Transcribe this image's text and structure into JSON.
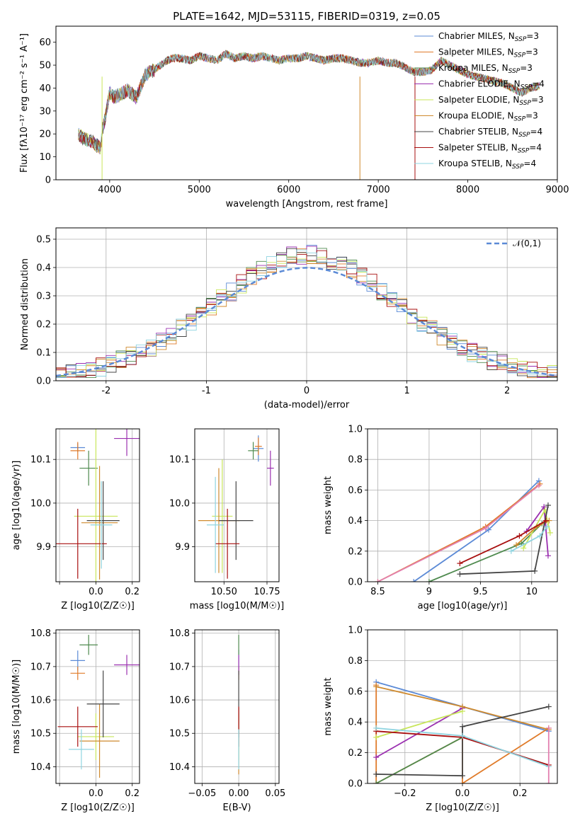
{
  "colors": [
    "#5b8ad6",
    "#e07b2a",
    "#4e8a4e",
    "#9b30b0",
    "#c8e65a",
    "#cf8a2e",
    "#444444",
    "#a80f0f",
    "#8fd4e0",
    "#e380b0"
  ],
  "panels": [
    {
      "id": "spectrum",
      "title": "PLATE=1642, MJD=53115, FIBERID=0319, z=0.05",
      "xlabel": "wavelength [Angstrom, rest frame]",
      "ylabel": "Flux [f$\\lambda$10$^{-17}$ erg cm$^{-2}$ s$^{-1}$ A$^{-1}$]",
      "ylabel_plain": "Flux [fλ10⁻¹⁷ erg cm⁻² s⁻¹ A⁻¹]",
      "xlim": [
        3400,
        9000
      ],
      "ylim": [
        0,
        67
      ],
      "xticks": [
        4000,
        5000,
        6000,
        7000,
        8000,
        9000
      ],
      "yticks": [
        0,
        10,
        20,
        30,
        40,
        50,
        60
      ],
      "legend": [
        "Chabrier MILES, N_SSP=3",
        "Salpeter MILES, N_SSP=3",
        "Kroupa MILES, N_SSP=3",
        "Chabrier ELODIE, N_SSP=4",
        "Salpeter ELODIE, N_SSP=3",
        "Kroupa ELODIE, N_SSP=3",
        "Chabrier STELIB, N_SSP=4",
        "Salpeter STELIB, N_SSP=4",
        "Kroupa STELIB, N_SSP=4"
      ],
      "legend_placement": "top-right",
      "grid": false,
      "continuum": [
        [
          3650,
          20
        ],
        [
          3700,
          18
        ],
        [
          3800,
          17
        ],
        [
          3850,
          15
        ],
        [
          3900,
          14
        ],
        [
          3920,
          22
        ],
        [
          3950,
          27
        ],
        [
          4000,
          38
        ],
        [
          4050,
          36
        ],
        [
          4100,
          37
        ],
        [
          4200,
          39
        ],
        [
          4300,
          36
        ],
        [
          4400,
          46
        ],
        [
          4500,
          48
        ],
        [
          4600,
          51
        ],
        [
          4700,
          53
        ],
        [
          4800,
          53
        ],
        [
          4900,
          52
        ],
        [
          5000,
          54
        ],
        [
          5100,
          53
        ],
        [
          5200,
          52
        ],
        [
          5300,
          55
        ],
        [
          5400,
          53
        ],
        [
          5500,
          54
        ],
        [
          5600,
          53
        ],
        [
          5700,
          54
        ],
        [
          5800,
          53
        ],
        [
          5900,
          52
        ],
        [
          6000,
          53
        ],
        [
          6100,
          53
        ],
        [
          6200,
          54
        ],
        [
          6300,
          53
        ],
        [
          6400,
          52
        ],
        [
          6500,
          53
        ],
        [
          6600,
          53
        ],
        [
          6700,
          52
        ],
        [
          6800,
          51
        ],
        [
          6900,
          51
        ],
        [
          7000,
          52
        ],
        [
          7100,
          51
        ],
        [
          7200,
          51
        ],
        [
          7300,
          49
        ],
        [
          7400,
          47
        ],
        [
          7500,
          47
        ],
        [
          7600,
          48
        ],
        [
          7700,
          52
        ],
        [
          7800,
          50
        ],
        [
          7900,
          48
        ],
        [
          8000,
          46
        ],
        [
          8100,
          45
        ],
        [
          8200,
          44
        ],
        [
          8300,
          43
        ],
        [
          8400,
          42
        ],
        [
          8500,
          40
        ],
        [
          8600,
          38
        ],
        [
          8700,
          40
        ],
        [
          8800,
          41
        ]
      ],
      "dropouts": [
        [
          3915,
          0
        ],
        [
          6795,
          0
        ],
        [
          7410,
          0
        ]
      ]
    },
    {
      "id": "residuals",
      "xlabel": "(data-model)/error",
      "ylabel": "Normed distribution",
      "xlim": [
        -2.5,
        2.5
      ],
      "ylim": [
        0,
        0.54
      ],
      "xticks": [
        -2,
        -1,
        0,
        1,
        2
      ],
      "yticks": [
        0.0,
        0.1,
        0.2,
        0.3,
        0.4,
        0.5
      ],
      "legend": [
        "𝒩(0,1)"
      ],
      "legend_placement": "top-right",
      "grid": true,
      "bin_width": 0.1,
      "gaussian": {
        "mean": 0,
        "sigma": 1
      }
    },
    {
      "id": "age-z",
      "xlabel": "Z [log10(Z/Z☉)]",
      "ylabel": "age [log10(age/yr)]",
      "xlim": [
        -0.22,
        0.24
      ],
      "ylim": [
        9.82,
        10.17
      ],
      "xticks": [
        -0.2,
        0.0,
        0.2
      ],
      "xtick_labels": [
        "",
        "0.0",
        "0.2"
      ],
      "yticks": [
        9.9,
        10.0,
        10.1
      ],
      "grid": true,
      "points": [
        [
          -0.1,
          10.127,
          0.04,
          0.01
        ],
        [
          -0.1,
          10.12,
          0.04,
          0.02
        ],
        [
          -0.04,
          10.08,
          0.05,
          0.04
        ],
        [
          0.17,
          10.148,
          0.07,
          0.04
        ],
        [
          0.0,
          9.97,
          0.12,
          0.25
        ],
        [
          0.02,
          9.955,
          0.1,
          0.13
        ],
        [
          0.04,
          9.96,
          0.09,
          0.09
        ],
        [
          -0.1,
          9.907,
          0.16,
          0.08
        ],
        [
          0.03,
          9.95,
          0.06,
          0.1
        ]
      ]
    },
    {
      "id": "age-mass",
      "xlabel": "mass [log10(M/M☉)]",
      "xlim": [
        10.33,
        10.82
      ],
      "ylim": [
        9.82,
        10.17
      ],
      "xticks": [
        10.5,
        10.75
      ],
      "xtick_labels": [
        "10.50",
        "10.75"
      ],
      "yticks": [
        9.9,
        10.0,
        10.1
      ],
      "grid": true,
      "points": [
        [
          10.7,
          10.125,
          0.03,
          0.03
        ],
        [
          10.7,
          10.13,
          0.02,
          0.02
        ],
        [
          10.67,
          10.12,
          0.03,
          0.02
        ],
        [
          10.77,
          10.08,
          0.02,
          0.04
        ],
        [
          10.49,
          9.97,
          0.06,
          0.13
        ],
        [
          10.47,
          9.96,
          0.12,
          0.12
        ],
        [
          10.57,
          9.96,
          0.1,
          0.09
        ],
        [
          10.52,
          9.907,
          0.07,
          0.08
        ],
        [
          10.45,
          9.95,
          0.05,
          0.11
        ]
      ]
    },
    {
      "id": "weight-age",
      "xlabel": "age [log10(age/yr)]",
      "ylabel": "mass weight",
      "xlim": [
        8.4,
        10.25
      ],
      "ylim": [
        0,
        1.0
      ],
      "xticks": [
        8.5,
        9.0,
        9.5,
        10.0
      ],
      "yticks": [
        0.0,
        0.2,
        0.4,
        0.6,
        0.8,
        1.0
      ],
      "grid": true,
      "series": [
        {
          "x": [
            8.85,
            9.58,
            10.07
          ],
          "y": [
            0.0,
            0.34,
            0.66
          ]
        },
        {
          "x": [
            8.5,
            9.55,
            10.08
          ],
          "y": [
            0.0,
            0.36,
            0.64
          ]
        },
        {
          "x": [
            9.0,
            9.9,
            10.1
          ],
          "y": [
            0.0,
            0.25,
            0.38
          ]
        },
        {
          "x": [
            9.95,
            10.12,
            10.16
          ],
          "y": [
            0.33,
            0.49,
            0.17
          ]
        },
        {
          "x": [
            9.92,
            10.13,
            10.18
          ],
          "y": [
            0.22,
            0.47,
            0.32
          ]
        },
        {
          "x": [
            9.85,
            10.05,
            10.17
          ],
          "y": [
            0.24,
            0.36,
            0.4
          ]
        },
        {
          "x": [
            9.3,
            10.03,
            10.16
          ],
          "y": [
            0.05,
            0.07,
            0.5
          ]
        },
        {
          "x": [
            9.3,
            9.88,
            10.14
          ],
          "y": [
            0.12,
            0.3,
            0.4
          ]
        },
        {
          "x": [
            9.8,
            10.08,
            10.15
          ],
          "y": [
            0.2,
            0.3,
            0.36
          ]
        },
        {
          "x": [
            8.5,
            9.55,
            10.07
          ],
          "y": [
            0.0,
            0.35,
            0.63
          ]
        }
      ]
    },
    {
      "id": "mass-z",
      "xlabel": "Z [log10(Z/Z☉)]",
      "ylabel": "mass [log10(M/M☉)]",
      "xlim": [
        -0.22,
        0.24
      ],
      "ylim": [
        10.35,
        10.81
      ],
      "xticks": [
        -0.2,
        0.0,
        0.2
      ],
      "xtick_labels": [
        "",
        "0.0",
        "0.2"
      ],
      "yticks": [
        10.4,
        10.5,
        10.6,
        10.7,
        10.8
      ],
      "grid": true,
      "points": [
        [
          -0.1,
          10.718,
          0.04,
          0.03
        ],
        [
          -0.1,
          10.68,
          0.04,
          0.02
        ],
        [
          -0.04,
          10.765,
          0.05,
          0.03
        ],
        [
          0.17,
          10.705,
          0.07,
          0.03
        ],
        [
          0.0,
          10.49,
          0.1,
          0.07
        ],
        [
          0.02,
          10.477,
          0.11,
          0.11
        ],
        [
          0.04,
          10.588,
          0.09,
          0.1
        ],
        [
          -0.1,
          10.52,
          0.11,
          0.06
        ],
        [
          -0.08,
          10.452,
          0.07,
          0.06
        ]
      ]
    },
    {
      "id": "mass-ebv",
      "xlabel": "E(B-V)",
      "xlim": [
        -0.06,
        0.055
      ],
      "ylim": [
        10.35,
        10.81
      ],
      "xticks": [
        -0.05,
        0.0,
        0.05
      ],
      "xtick_labels": [
        "−0.05",
        "0.00",
        "0.05"
      ],
      "yticks": [
        10.4,
        10.5,
        10.6,
        10.7,
        10.8
      ],
      "grid": true,
      "points": [
        [
          0.0,
          10.72,
          0,
          0.03
        ],
        [
          0.0,
          10.68,
          0,
          0.02
        ],
        [
          0.0,
          10.765,
          0,
          0.03
        ],
        [
          0.0,
          10.705,
          0,
          0.03
        ],
        [
          0.0,
          10.49,
          0,
          0.07
        ],
        [
          0.0,
          10.477,
          0,
          0.1
        ],
        [
          0.0,
          10.588,
          0,
          0.1
        ],
        [
          0.0,
          10.52,
          0,
          0.06
        ],
        [
          0.0,
          10.452,
          0,
          0.06
        ]
      ]
    },
    {
      "id": "weight-z",
      "xlabel": "Z [log10(Z/Z☉)]",
      "ylabel": "mass weight",
      "xlim": [
        -0.33,
        0.33
      ],
      "ylim": [
        0,
        1.0
      ],
      "xticks": [
        -0.2,
        0.0,
        0.2
      ],
      "xtick_labels": [
        "−0.2",
        "0.0",
        "0.2"
      ],
      "yticks": [
        0.0,
        0.2,
        0.4,
        0.6,
        0.8,
        1.0
      ],
      "grid": true,
      "series": [
        {
          "x": [
            -0.3,
            0.0,
            0.3
          ],
          "y": [
            0.66,
            0.5,
            0.34
          ]
        },
        {
          "x": [
            -0.3,
            -0.3,
            0.0,
            0.0,
            0.3
          ],
          "y": [
            0.64,
            0.0,
            0.3,
            0.0,
            0.36
          ]
        },
        {
          "x": [
            -0.3,
            0.0
          ],
          "y": [
            0.0,
            0.3
          ]
        },
        {
          "x": [
            -0.3,
            0.0
          ],
          "y": [
            0.17,
            0.49
          ]
        },
        {
          "x": [
            -0.3,
            0.0
          ],
          "y": [
            0.3,
            0.47
          ]
        },
        {
          "x": [
            -0.3,
            0.0,
            0.3
          ],
          "y": [
            0.63,
            0.5,
            0.35
          ]
        },
        {
          "x": [
            -0.3,
            0.0,
            0.0,
            0.3
          ],
          "y": [
            0.06,
            0.05,
            0.37,
            0.5
          ]
        },
        {
          "x": [
            -0.3,
            0.0,
            0.3
          ],
          "y": [
            0.34,
            0.3,
            0.12
          ]
        },
        {
          "x": [
            -0.3,
            0.0,
            0.3
          ],
          "y": [
            0.36,
            0.31,
            0.11
          ]
        },
        {
          "x": [
            0.3,
            0.3
          ],
          "y": [
            0.0,
            0.36
          ]
        }
      ]
    }
  ],
  "chart_data": [
    {
      "type": "line",
      "title": "PLATE=1642, MJD=53115, FIBERID=0319, z=0.05",
      "xlabel": "wavelength [Angstrom, rest frame]",
      "ylabel": "Flux [fλ10⁻¹⁷ erg cm⁻² s⁻¹ A⁻¹]",
      "xlim": [
        3400,
        9000
      ],
      "ylim": [
        0,
        67
      ],
      "series": [
        {
          "name": "Chabrier MILES, N_SSP=3"
        },
        {
          "name": "Salpeter MILES, N_SSP=3"
        },
        {
          "name": "Kroupa MILES, N_SSP=3"
        },
        {
          "name": "Chabrier ELODIE, N_SSP=4"
        },
        {
          "name": "Salpeter ELODIE, N_SSP=3"
        },
        {
          "name": "Kroupa ELODIE, N_SSP=3"
        },
        {
          "name": "Chabrier STELIB, N_SSP=4"
        },
        {
          "name": "Salpeter STELIB, N_SSP=4"
        },
        {
          "name": "Kroupa STELIB, N_SSP=4"
        }
      ]
    },
    {
      "type": "line",
      "xlabel": "(data-model)/error",
      "ylabel": "Normed distribution",
      "xlim": [
        -2.5,
        2.5
      ],
      "ylim": [
        0,
        0.54
      ],
      "legend": [
        "𝒩(0,1)"
      ]
    },
    {
      "type": "scatter",
      "xlabel": "Z [log10(Z/Z☉)]",
      "ylabel": "age [log10(age/yr)]"
    },
    {
      "type": "scatter",
      "xlabel": "mass [log10(M/M☉)]"
    },
    {
      "type": "line",
      "xlabel": "age [log10(age/yr)]",
      "ylabel": "mass weight"
    },
    {
      "type": "scatter",
      "xlabel": "Z [log10(Z/Z☉)]",
      "ylabel": "mass [log10(M/M☉)]"
    },
    {
      "type": "scatter",
      "xlabel": "E(B-V)"
    },
    {
      "type": "line",
      "xlabel": "Z [log10(Z/Z☉)]",
      "ylabel": "mass weight"
    }
  ]
}
